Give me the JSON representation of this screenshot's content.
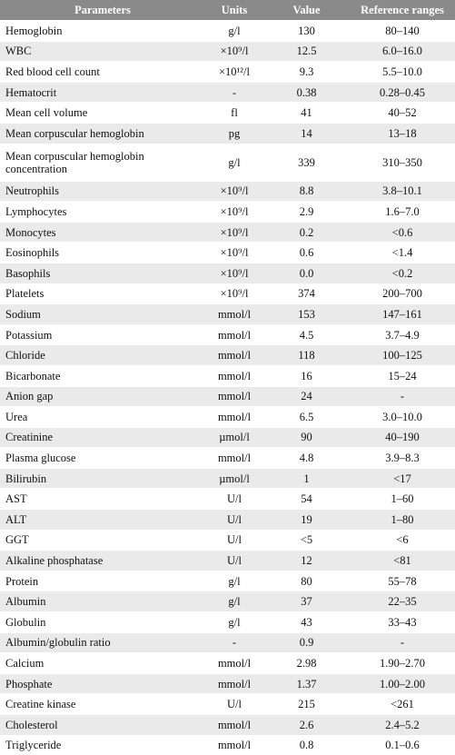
{
  "table": {
    "header": [
      "Parameters",
      "Units",
      "Value",
      "Reference ranges"
    ],
    "rows": [
      [
        "Hemoglobin",
        "g/l",
        "130",
        "80–140"
      ],
      [
        "WBC",
        "×10⁹/l",
        "12.5",
        "6.0–16.0"
      ],
      [
        "Red blood cell count",
        "×10¹²/l",
        "9.3",
        "5.5–10.0"
      ],
      [
        "Hematocrit",
        "-",
        "0.38",
        "0.28–0.45"
      ],
      [
        "Mean cell volume",
        "fl",
        "41",
        "40–52"
      ],
      [
        "Mean corpuscular hemoglobin",
        "pg",
        "14",
        "13–18"
      ],
      [
        "Mean corpuscular hemoglobin concentration",
        "g/l",
        "339",
        "310–350"
      ],
      [
        "Neutrophils",
        "×10⁹/l",
        "8.8",
        "3.8–10.1"
      ],
      [
        "Lymphocytes",
        "×10⁹/l",
        "2.9",
        "1.6–7.0"
      ],
      [
        "Monocytes",
        "×10⁹/l",
        "0.2",
        "<0.6"
      ],
      [
        "Eosinophils",
        "×10⁹/l",
        "0.6",
        "<1.4"
      ],
      [
        "Basophils",
        "×10⁹/l",
        "0.0",
        "<0.2"
      ],
      [
        "Platelets",
        "×10⁹/l",
        "374",
        "200–700"
      ],
      [
        "Sodium",
        "mmol/l",
        "153",
        "147–161"
      ],
      [
        "Potassium",
        "mmol/l",
        "4.5",
        "3.7–4.9"
      ],
      [
        "Chloride",
        "mmol/l",
        "118",
        "100–125"
      ],
      [
        "Bicarbonate",
        "mmol/l",
        "16",
        "15–24"
      ],
      [
        "Anion gap",
        "mmol/l",
        "24",
        "-"
      ],
      [
        "Urea",
        "mmol/l",
        "6.5",
        "3.0–10.0"
      ],
      [
        "Creatinine",
        "µmol/l",
        "90",
        "40–190"
      ],
      [
        "Plasma glucose",
        "mmol/l",
        "4.8",
        "3.9–8.3"
      ],
      [
        "Bilirubin",
        "µmol/l",
        "1",
        "<17"
      ],
      [
        "AST",
        "U/l",
        "54",
        "1–60"
      ],
      [
        "ALT",
        "U/l",
        "19",
        "1–80"
      ],
      [
        "GGT",
        "U/l",
        "<5",
        "<6"
      ],
      [
        "Alkaline phosphatase",
        "U/l",
        "12",
        "<81"
      ],
      [
        "Protein",
        "g/l",
        "80",
        "55–78"
      ],
      [
        "Albumin",
        "g/l",
        "37",
        "22–35"
      ],
      [
        "Globulin",
        "g/l",
        "43",
        "33–43"
      ],
      [
        "Albumin/globulin ratio",
        "-",
        "0.9",
        "-"
      ],
      [
        "Calcium",
        "mmol/l",
        "2.98",
        "1.90–2.70"
      ],
      [
        "Phosphate",
        "mmol/l",
        "1.37",
        "1.00–2.00"
      ],
      [
        "Creatine kinase",
        "U/l",
        "215",
        "<261"
      ],
      [
        "Cholesterol",
        "mmol/l",
        "2.6",
        "2.4–5.2"
      ],
      [
        "Triglyceride",
        "mmol/l",
        "0.8",
        "0.1–0.6"
      ]
    ]
  }
}
